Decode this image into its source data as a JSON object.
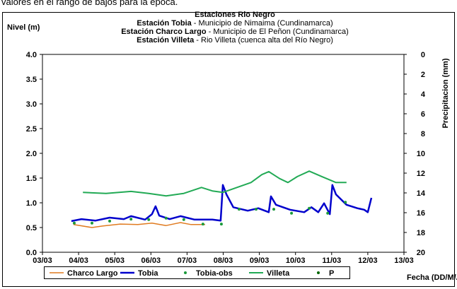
{
  "caption": "valores en el rango de bajos para la época.",
  "chart_data": {
    "type": "line",
    "title_lines": [
      {
        "bold": "Estaciones Rio Negro",
        "rest": ""
      },
      {
        "bold": "Estación Tobia",
        "rest": " - Municipio de Nimaima (Cundinamarca)"
      },
      {
        "bold": "Estación Charco Largo",
        "rest": " - Municipio de El Peñon (Cundinamarca)"
      },
      {
        "bold": "Estación Villeta",
        "rest": " -  Rio Villeta (cuenca alta del Río Negro)"
      }
    ],
    "ylabel": "Nivel (m)",
    "y2label": "Precipitacion (mm)",
    "xlabel": "Fecha (DD/M/AA)",
    "xlim": [
      0,
      10
    ],
    "xticks": [
      {
        "value": 0,
        "label": "03/03"
      },
      {
        "value": 1,
        "label": "04/03"
      },
      {
        "value": 2,
        "label": "05/03"
      },
      {
        "value": 3,
        "label": "06/03"
      },
      {
        "value": 4,
        "label": "07/03"
      },
      {
        "value": 5,
        "label": "08/03"
      },
      {
        "value": 6,
        "label": "09/03"
      },
      {
        "value": 7,
        "label": "10/03"
      },
      {
        "value": 8,
        "label": "11/03"
      },
      {
        "value": 9,
        "label": "12/03"
      },
      {
        "value": 10,
        "label": "13/03"
      }
    ],
    "ylim": [
      0,
      4
    ],
    "yticks": [
      {
        "value": 0,
        "label": "0.0"
      },
      {
        "value": 0.5,
        "label": "0.5"
      },
      {
        "value": 1,
        "label": "1.0"
      },
      {
        "value": 1.5,
        "label": "1.5"
      },
      {
        "value": 2,
        "label": "2.0"
      },
      {
        "value": 2.5,
        "label": "2.5"
      },
      {
        "value": 3,
        "label": "3.0"
      },
      {
        "value": 3.5,
        "label": "3.5"
      },
      {
        "value": 4,
        "label": "4.0"
      }
    ],
    "y2lim": [
      0,
      20
    ],
    "y2inverted": true,
    "y2ticks": [
      0,
      2,
      4,
      6,
      8,
      10,
      12,
      14,
      16,
      18,
      20
    ],
    "series": [
      {
        "name": "Charco Largo",
        "color": "#e07b20",
        "style": "line",
        "width": 1.5,
        "x": [
          0.86,
          1.37,
          1.66,
          2.15,
          2.64,
          3.03,
          3.42,
          3.82,
          4.11,
          4.5
        ],
        "values": [
          0.56,
          0.5,
          0.53,
          0.57,
          0.56,
          0.59,
          0.54,
          0.6,
          0.56,
          0.56
        ]
      },
      {
        "name": "Tobia",
        "color": "#0000cc",
        "style": "line",
        "width": 2.5,
        "x": [
          0.8,
          1.08,
          1.47,
          1.86,
          2.25,
          2.45,
          2.84,
          3.03,
          3.13,
          3.23,
          3.52,
          3.82,
          4.21,
          4.7,
          4.93,
          4.99,
          5.09,
          5.28,
          5.68,
          5.97,
          6.26,
          6.32,
          6.46,
          6.85,
          7.24,
          7.44,
          7.63,
          7.79,
          7.95,
          8.02,
          8.12,
          8.41,
          8.71,
          8.9,
          9.0,
          9.1
        ],
        "values": [
          0.63,
          0.67,
          0.64,
          0.7,
          0.67,
          0.73,
          0.66,
          0.77,
          0.93,
          0.74,
          0.67,
          0.73,
          0.66,
          0.66,
          0.64,
          1.36,
          1.17,
          0.91,
          0.84,
          0.89,
          0.81,
          1.13,
          0.96,
          0.86,
          0.81,
          0.91,
          0.81,
          0.99,
          0.77,
          1.36,
          1.17,
          0.96,
          0.89,
          0.86,
          0.81,
          1.1
        ]
      },
      {
        "name": "Tobia-obs",
        "color": "#1a9a3a",
        "style": "dot",
        "x": [
          0.88,
          1.37,
          1.86,
          2.45,
          2.94,
          3.42,
          3.91,
          4.44,
          4.95,
          5.44,
          5.91,
          6.4,
          6.89,
          7.38,
          7.89,
          8.38
        ],
        "values": [
          0.59,
          0.59,
          0.63,
          0.67,
          0.66,
          0.69,
          0.66,
          0.57,
          0.57,
          0.87,
          0.87,
          0.87,
          0.79,
          0.89,
          0.79,
          1.01
        ]
      },
      {
        "name": "Villeta",
        "color": "#22aa55",
        "style": "line",
        "width": 2,
        "x": [
          1.12,
          1.76,
          2.45,
          2.94,
          3.42,
          3.91,
          4.4,
          4.7,
          4.99,
          5.38,
          5.77,
          6.07,
          6.26,
          6.56,
          6.79,
          7.05,
          7.38,
          7.73,
          8.12,
          8.41
        ],
        "values": [
          1.21,
          1.19,
          1.23,
          1.19,
          1.14,
          1.19,
          1.31,
          1.24,
          1.21,
          1.31,
          1.41,
          1.57,
          1.63,
          1.49,
          1.41,
          1.53,
          1.64,
          1.53,
          1.41,
          1.41
        ]
      },
      {
        "name": "P",
        "color": "#006600",
        "style": "dot",
        "axis": "y2",
        "x": [],
        "values": []
      }
    ]
  }
}
